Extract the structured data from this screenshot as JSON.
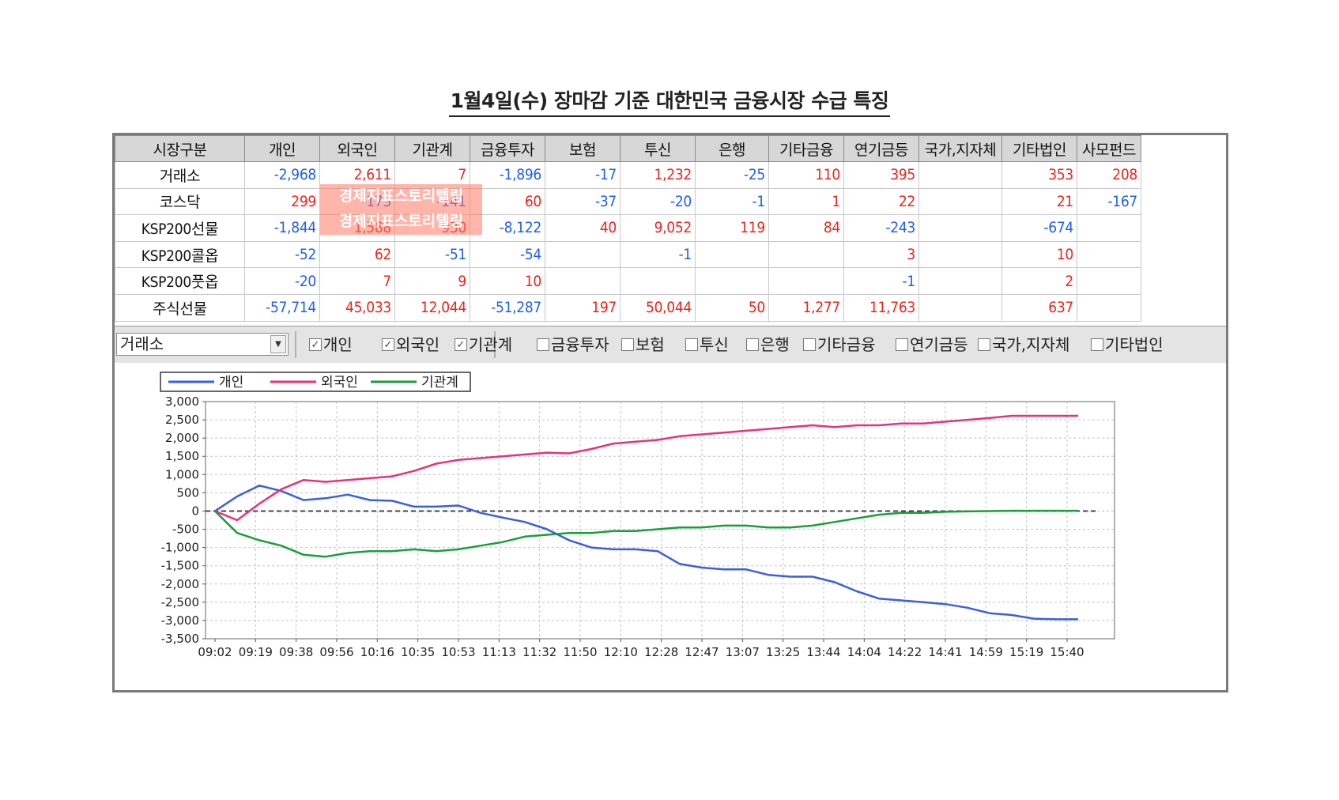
{
  "title": "1월4일(수) 장마감 기준 대한민국 금융시장 수급 특징",
  "table": {
    "headers": [
      "시장구분",
      "개인",
      "외국인",
      "기관계",
      "금융투자",
      "보험",
      "투신",
      "은행",
      "기타금융",
      "연기금등",
      "국가,지자체",
      "기타법인",
      "사모펀드"
    ],
    "rows": [
      {
        "label": "거래소",
        "cells": [
          "-2,968",
          "2,611",
          "7",
          "-1,896",
          "-17",
          "1,232",
          "-25",
          "110",
          "395",
          "",
          "353",
          "208"
        ]
      },
      {
        "label": "코스닥",
        "cells": [
          "299",
          "-173",
          "-141",
          "60",
          "-37",
          "-20",
          "-1",
          "1",
          "22",
          "",
          "21",
          "-167"
        ]
      },
      {
        "label": "KSP200선물",
        "cells": [
          "-1,844",
          "1,588",
          "930",
          "-8,122",
          "40",
          "9,052",
          "119",
          "84",
          "-243",
          "",
          "-674",
          ""
        ]
      },
      {
        "label": "KSP200콜옵",
        "cells": [
          "-52",
          "62",
          "-51",
          "-54",
          "",
          "-1",
          "",
          "",
          "3",
          "",
          "10",
          ""
        ]
      },
      {
        "label": "KSP200풋옵",
        "cells": [
          "-20",
          "7",
          "9",
          "10",
          "",
          "",
          "",
          "",
          "-1",
          "",
          "2",
          ""
        ]
      },
      {
        "label": "주식선물",
        "cells": [
          "-57,714",
          "45,033",
          "12,044",
          "-51,287",
          "197",
          "50,044",
          "50",
          "1,277",
          "11,763",
          "",
          "637",
          ""
        ]
      }
    ],
    "watermark": "경제지표스토리텔링"
  },
  "toolbar": {
    "market_select": "거래소",
    "checks": [
      {
        "label": "개인",
        "checked": true
      },
      {
        "label": "외국인",
        "checked": true
      },
      {
        "label": "기관계",
        "checked": true
      },
      {
        "label": "금융투자",
        "checked": false
      },
      {
        "label": "보험",
        "checked": false
      },
      {
        "label": "투신",
        "checked": false
      },
      {
        "label": "은행",
        "checked": false
      },
      {
        "label": "기타금융",
        "checked": false
      },
      {
        "label": "연기금등",
        "checked": false
      },
      {
        "label": "국가,지자체",
        "checked": false
      },
      {
        "label": "기타법인",
        "checked": false
      }
    ]
  },
  "chart_data": {
    "type": "line",
    "x_ticks": [
      "09:02",
      "09:19",
      "09:38",
      "09:56",
      "10:16",
      "10:35",
      "10:53",
      "11:13",
      "11:32",
      "11:50",
      "12:10",
      "12:28",
      "12:47",
      "13:07",
      "13:25",
      "13:44",
      "14:04",
      "14:22",
      "14:41",
      "14:59",
      "15:19",
      "15:40"
    ],
    "ylim": [
      -3500,
      3000
    ],
    "y_ticks": [
      "3,000",
      "2,500",
      "2,000",
      "1,500",
      "1,000",
      "500",
      "0",
      "-500",
      "-1,000",
      "-1,500",
      "-2,000",
      "-2,500",
      "-3,000",
      "-3,500"
    ],
    "grid": true,
    "zero_line": true,
    "legend_position": "top-left",
    "series": [
      {
        "name": "개인",
        "color": "#3c5ee0",
        "values": [
          0,
          400,
          700,
          550,
          300,
          350,
          450,
          300,
          280,
          120,
          120,
          150,
          -50,
          -180,
          -300,
          -500,
          -800,
          -1000,
          -1050,
          -1050,
          -1100,
          -1450,
          -1550,
          -1600,
          -1600,
          -1750,
          -1800,
          -1800,
          -1950,
          -2200,
          -2400,
          -2450,
          -2500,
          -2550,
          -2650,
          -2800,
          -2850,
          -2950,
          -2968,
          -2968
        ]
      },
      {
        "name": "외국인",
        "color": "#e8327a",
        "values": [
          0,
          -250,
          200,
          600,
          850,
          800,
          850,
          900,
          950,
          1100,
          1300,
          1400,
          1450,
          1500,
          1550,
          1600,
          1580,
          1700,
          1850,
          1900,
          1950,
          2050,
          2100,
          2150,
          2200,
          2250,
          2300,
          2350,
          2300,
          2350,
          2350,
          2400,
          2400,
          2450,
          2500,
          2550,
          2611,
          2611,
          2611,
          2611
        ]
      },
      {
        "name": "기관계",
        "color": "#1a9e3c",
        "values": [
          0,
          -600,
          -800,
          -950,
          -1200,
          -1250,
          -1150,
          -1100,
          -1100,
          -1050,
          -1100,
          -1050,
          -950,
          -850,
          -700,
          -650,
          -600,
          -600,
          -550,
          -550,
          -500,
          -450,
          -450,
          -400,
          -400,
          -450,
          -450,
          -400,
          -300,
          -200,
          -100,
          -50,
          -50,
          -20,
          -10,
          0,
          7,
          7,
          7,
          7
        ]
      }
    ]
  }
}
